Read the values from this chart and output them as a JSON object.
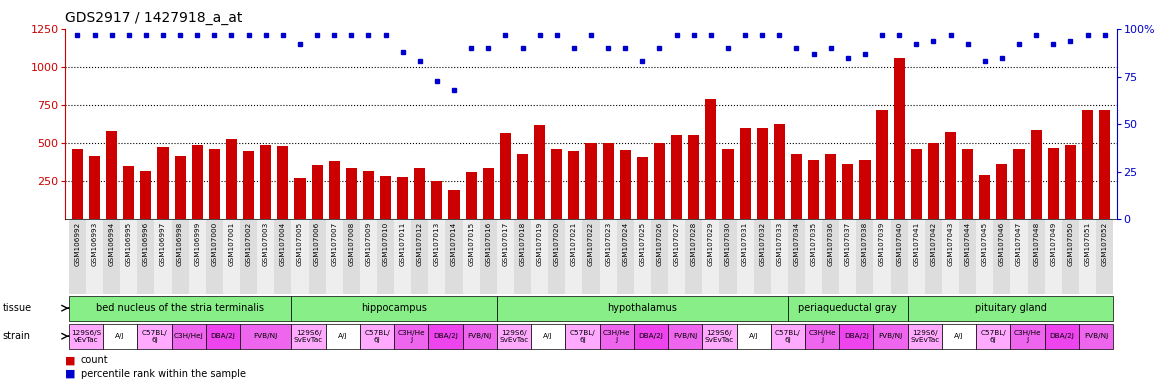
{
  "title": "GDS2917 / 1427918_a_at",
  "gsm_labels": [
    "GSM106992",
    "GSM106993",
    "GSM106994",
    "GSM106995",
    "GSM106996",
    "GSM106997",
    "GSM106998",
    "GSM106999",
    "GSM107000",
    "GSM107001",
    "GSM107002",
    "GSM107003",
    "GSM107004",
    "GSM107005",
    "GSM107006",
    "GSM107007",
    "GSM107008",
    "GSM107009",
    "GSM107010",
    "GSM107011",
    "GSM107012",
    "GSM107013",
    "GSM107014",
    "GSM107015",
    "GSM107016",
    "GSM107017",
    "GSM107018",
    "GSM107019",
    "GSM107020",
    "GSM107021",
    "GSM107022",
    "GSM107023",
    "GSM107024",
    "GSM107025",
    "GSM107026",
    "GSM107027",
    "GSM107028",
    "GSM107029",
    "GSM107030",
    "GSM107031",
    "GSM107032",
    "GSM107033",
    "GSM107034",
    "GSM107035",
    "GSM107036",
    "GSM107037",
    "GSM107038",
    "GSM107039",
    "GSM107040",
    "GSM107041",
    "GSM107042",
    "GSM107043",
    "GSM107044",
    "GSM107045",
    "GSM107046",
    "GSM107047",
    "GSM107048",
    "GSM107049",
    "GSM107050",
    "GSM107051",
    "GSM107052"
  ],
  "count_values": [
    460,
    415,
    580,
    350,
    320,
    475,
    415,
    490,
    460,
    530,
    450,
    490,
    480,
    270,
    360,
    380,
    340,
    320,
    285,
    275,
    340,
    250,
    195,
    310,
    340,
    570,
    430,
    620,
    460,
    450,
    500,
    500,
    455,
    410,
    500,
    555,
    555,
    790,
    460,
    600,
    600,
    625,
    430,
    390,
    430,
    365,
    390,
    720,
    1060,
    465,
    500,
    575,
    465,
    290,
    365,
    465,
    590,
    470,
    490,
    720,
    720
  ],
  "percentile_values": [
    97,
    97,
    97,
    97,
    97,
    97,
    97,
    97,
    97,
    97,
    97,
    97,
    97,
    92,
    97,
    97,
    97,
    97,
    97,
    88,
    83,
    73,
    68,
    90,
    90,
    97,
    90,
    97,
    97,
    90,
    97,
    90,
    90,
    83,
    90,
    97,
    97,
    97,
    90,
    97,
    97,
    97,
    90,
    87,
    90,
    85,
    87,
    97,
    97,
    92,
    94,
    97,
    92,
    83,
    85,
    92,
    97,
    92,
    94,
    97,
    97
  ],
  "ylim_left": [
    0,
    1250
  ],
  "ylim_right": [
    0,
    100
  ],
  "yticks_left": [
    250,
    500,
    750,
    1000,
    1250
  ],
  "yticks_right": [
    0,
    25,
    50,
    75,
    100
  ],
  "bar_color": "#cc0000",
  "dot_color": "#0000cc",
  "tissues": [
    {
      "label": "bed nucleus of the stria terminalis",
      "start": 0,
      "end": 12
    },
    {
      "label": "hippocampus",
      "start": 13,
      "end": 24
    },
    {
      "label": "hypothalamus",
      "start": 25,
      "end": 41
    },
    {
      "label": "periaqueductal gray",
      "start": 42,
      "end": 48
    },
    {
      "label": "pituitary gland",
      "start": 49,
      "end": 60
    }
  ],
  "tissue_color": "#88ee88",
  "strains": [
    {
      "label": "129S6/S\nvEvTac",
      "start": 0,
      "end": 1,
      "color": "#ffaaff"
    },
    {
      "label": "A/J",
      "start": 2,
      "end": 3,
      "color": "#ffffff"
    },
    {
      "label": "C57BL/\n6J",
      "start": 4,
      "end": 5,
      "color": "#ffaaff"
    },
    {
      "label": "C3H/HeJ",
      "start": 6,
      "end": 7,
      "color": "#ee66ee"
    },
    {
      "label": "DBA/2J",
      "start": 8,
      "end": 9,
      "color": "#ee44ee"
    },
    {
      "label": "FVB/NJ",
      "start": 10,
      "end": 12,
      "color": "#ee66ee"
    },
    {
      "label": "129S6/\nSvEvTac",
      "start": 13,
      "end": 14,
      "color": "#ffaaff"
    },
    {
      "label": "A/J",
      "start": 15,
      "end": 16,
      "color": "#ffffff"
    },
    {
      "label": "C57BL/\n6J",
      "start": 17,
      "end": 18,
      "color": "#ffaaff"
    },
    {
      "label": "C3H/He\nJ",
      "start": 19,
      "end": 20,
      "color": "#ee66ee"
    },
    {
      "label": "DBA/2J",
      "start": 21,
      "end": 22,
      "color": "#ee44ee"
    },
    {
      "label": "FVB/NJ",
      "start": 23,
      "end": 24,
      "color": "#ee66ee"
    },
    {
      "label": "129S6/\nSvEvTac",
      "start": 25,
      "end": 26,
      "color": "#ffaaff"
    },
    {
      "label": "A/J",
      "start": 27,
      "end": 28,
      "color": "#ffffff"
    },
    {
      "label": "C57BL/\n6J",
      "start": 29,
      "end": 30,
      "color": "#ffaaff"
    },
    {
      "label": "C3H/He\nJ",
      "start": 31,
      "end": 32,
      "color": "#ee66ee"
    },
    {
      "label": "DBA/2J",
      "start": 33,
      "end": 34,
      "color": "#ee44ee"
    },
    {
      "label": "FVB/NJ",
      "start": 35,
      "end": 36,
      "color": "#ee66ee"
    },
    {
      "label": "129S6/\nSvEvTac",
      "start": 37,
      "end": 38,
      "color": "#ffaaff"
    },
    {
      "label": "A/J",
      "start": 39,
      "end": 40,
      "color": "#ffffff"
    },
    {
      "label": "C57BL/\n6J",
      "start": 41,
      "end": 42,
      "color": "#ffaaff"
    },
    {
      "label": "C3H/He\nJ",
      "start": 43,
      "end": 44,
      "color": "#ee66ee"
    },
    {
      "label": "DBA/2J",
      "start": 45,
      "end": 46,
      "color": "#ee44ee"
    },
    {
      "label": "FVB/NJ",
      "start": 47,
      "end": 48,
      "color": "#ee66ee"
    },
    {
      "label": "129S6/\nSvEvTac",
      "start": 49,
      "end": 50,
      "color": "#ffaaff"
    },
    {
      "label": "A/J",
      "start": 51,
      "end": 52,
      "color": "#ffffff"
    },
    {
      "label": "C57BL/\n6J",
      "start": 53,
      "end": 54,
      "color": "#ffaaff"
    },
    {
      "label": "C3H/He\nJ",
      "start": 55,
      "end": 56,
      "color": "#ee66ee"
    },
    {
      "label": "DBA/2J",
      "start": 57,
      "end": 58,
      "color": "#ee44ee"
    },
    {
      "label": "FVB/NJ",
      "start": 59,
      "end": 60,
      "color": "#ee66ee"
    }
  ],
  "bg_color": "#ffffff",
  "bar_color_left": "#cc0000",
  "dot_color_right": "#0000cc"
}
